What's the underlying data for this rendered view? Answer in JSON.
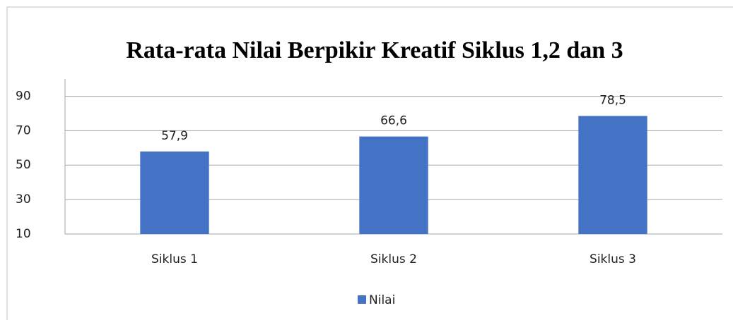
{
  "chart_data": {
    "type": "bar",
    "title": "Rata-rata Nilai Berpikir Kreatif Siklus 1,2 dan 3",
    "categories": [
      "Siklus 1",
      "Siklus 2",
      "Siklus 3"
    ],
    "series": [
      {
        "name": "Nilai",
        "color": "#4472c4",
        "values": [
          57.9,
          66.6,
          78.5
        ],
        "value_labels": [
          "57,9",
          "66,6",
          "78,5"
        ]
      }
    ],
    "ylim": [
      10,
      100
    ],
    "yticks": [
      10,
      30,
      50,
      70,
      90
    ],
    "grid": true,
    "legend": "bottom"
  }
}
